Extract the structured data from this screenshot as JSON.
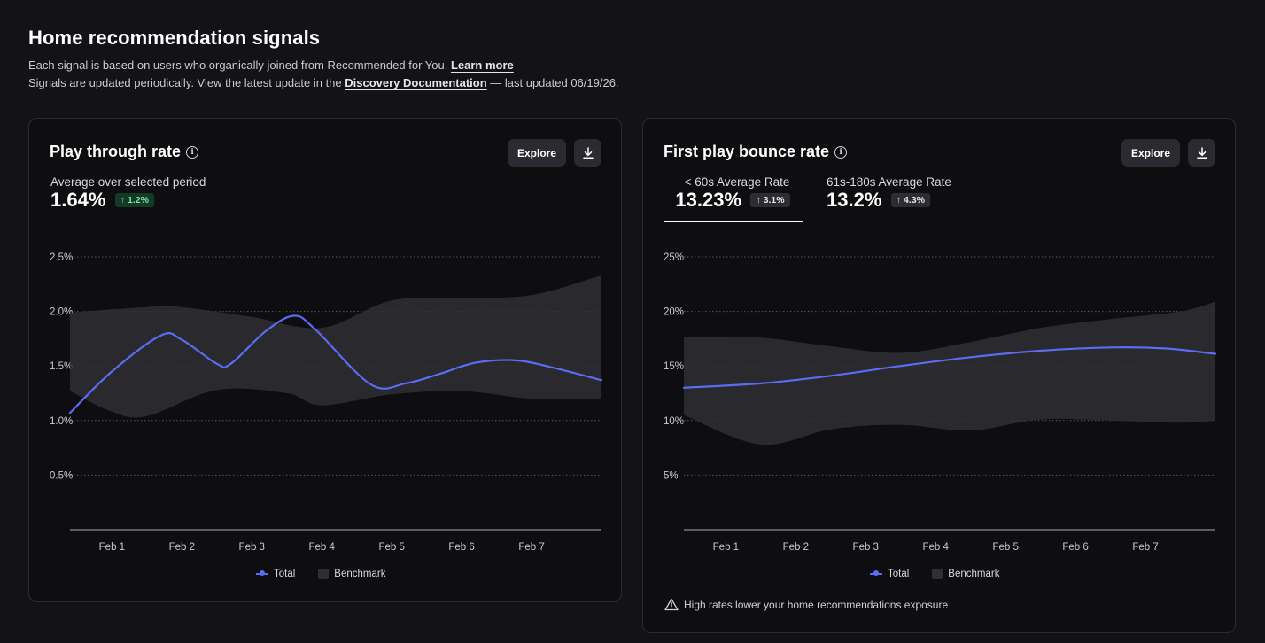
{
  "header": {
    "title": "Home recommendation signals",
    "line1_text": "Each signal is based on users who organically joined from Recommended for You.",
    "line1_link": "Learn more",
    "line2_pre": "Signals are updated periodically. View the latest update in the",
    "line2_link": "Discovery Documentation",
    "line2_post": "— last updated 06/19/26."
  },
  "colors": {
    "total": "#5a6cf0",
    "benchmark": "#2e2e34",
    "positive_badge": "#7fe3a6"
  },
  "cards": [
    {
      "title": "Play through rate",
      "explore_label": "Explore",
      "download_icon": "download-icon",
      "info_icon": "info-icon",
      "metric": {
        "label": "Average over selected period",
        "value": "1.64%",
        "delta": "1.2%"
      },
      "legend": {
        "total": "Total",
        "benchmark": "Benchmark"
      }
    },
    {
      "title": "First play bounce rate",
      "explore_label": "Explore",
      "download_icon": "download-icon",
      "info_icon": "info-icon",
      "tabs": [
        {
          "label": "< 60s Average Rate",
          "value": "13.23%",
          "delta": "3.1%",
          "selected": true
        },
        {
          "label": "61s-180s Average Rate",
          "value": "13.2%",
          "delta": "4.3%",
          "selected": false
        }
      ],
      "legend": {
        "total": "Total",
        "benchmark": "Benchmark"
      },
      "warning": "High rates lower your home recommendations exposure",
      "warning_icon": "warning-icon"
    }
  ],
  "chart_data": [
    {
      "type": "line",
      "x": [
        "Feb 1",
        "Feb 2",
        "Feb 3",
        "Feb 4",
        "Feb 5",
        "Feb 6",
        "Feb 7"
      ],
      "x_range": [
        0.4,
        8
      ],
      "y_ticks": [
        "2.5%",
        "2.0%",
        "1.5%",
        "1.0%",
        "0.5%"
      ],
      "ylim": [
        0,
        2.5
      ],
      "grid": true,
      "legend_position": "bottom-center",
      "total": [
        [
          0.4,
          1.07
        ],
        [
          1,
          1.45
        ],
        [
          1.7,
          1.78
        ],
        [
          2,
          1.74
        ],
        [
          2.5,
          1.52
        ],
        [
          2.7,
          1.52
        ],
        [
          3.2,
          1.82
        ],
        [
          3.6,
          1.96
        ],
        [
          3.9,
          1.84
        ],
        [
          4.7,
          1.33
        ],
        [
          5.2,
          1.34
        ],
        [
          5.7,
          1.43
        ],
        [
          6.2,
          1.53
        ],
        [
          6.8,
          1.55
        ],
        [
          7.4,
          1.47
        ],
        [
          8,
          1.37
        ]
      ],
      "benchmark_upper": [
        [
          0.4,
          1.99
        ],
        [
          1.5,
          2.04
        ],
        [
          2,
          2.04
        ],
        [
          3,
          1.95
        ],
        [
          4,
          1.85
        ],
        [
          5,
          2.1
        ],
        [
          6,
          2.12
        ],
        [
          7,
          2.15
        ],
        [
          8,
          2.33
        ]
      ],
      "benchmark_lower": [
        [
          0.4,
          1.27
        ],
        [
          1,
          1.08
        ],
        [
          1.5,
          1.04
        ],
        [
          2.5,
          1.28
        ],
        [
          3.5,
          1.25
        ],
        [
          4,
          1.14
        ],
        [
          5,
          1.24
        ],
        [
          6,
          1.27
        ],
        [
          7,
          1.2
        ],
        [
          8,
          1.2
        ]
      ]
    },
    {
      "type": "line",
      "x": [
        "Feb 1",
        "Feb 2",
        "Feb 3",
        "Feb 4",
        "Feb 5",
        "Feb 6",
        "Feb 7"
      ],
      "x_range": [
        0.4,
        8
      ],
      "y_ticks": [
        "25%",
        "20%",
        "15%",
        "10%",
        "5%"
      ],
      "ylim": [
        0,
        25
      ],
      "grid": true,
      "legend_position": "bottom-center",
      "total": [
        [
          0.4,
          13.0
        ],
        [
          1.5,
          13.4
        ],
        [
          2.5,
          14.1
        ],
        [
          3.5,
          15.0
        ],
        [
          4.5,
          15.8
        ],
        [
          5.5,
          16.4
        ],
        [
          6.5,
          16.7
        ],
        [
          7.3,
          16.6
        ],
        [
          8,
          16.1
        ]
      ],
      "benchmark_upper": [
        [
          0.4,
          17.7
        ],
        [
          1.5,
          17.6
        ],
        [
          2.5,
          16.8
        ],
        [
          3.5,
          16.2
        ],
        [
          4.5,
          17.2
        ],
        [
          5.5,
          18.5
        ],
        [
          6.5,
          19.3
        ],
        [
          7.5,
          20.0
        ],
        [
          8,
          20.9
        ]
      ],
      "benchmark_lower": [
        [
          0.4,
          10.5
        ],
        [
          1.5,
          7.8
        ],
        [
          2.5,
          9.2
        ],
        [
          3.5,
          9.6
        ],
        [
          4.5,
          9.1
        ],
        [
          5.5,
          10.1
        ],
        [
          6.5,
          10.0
        ],
        [
          7.5,
          9.8
        ],
        [
          8,
          10.0
        ]
      ]
    }
  ]
}
